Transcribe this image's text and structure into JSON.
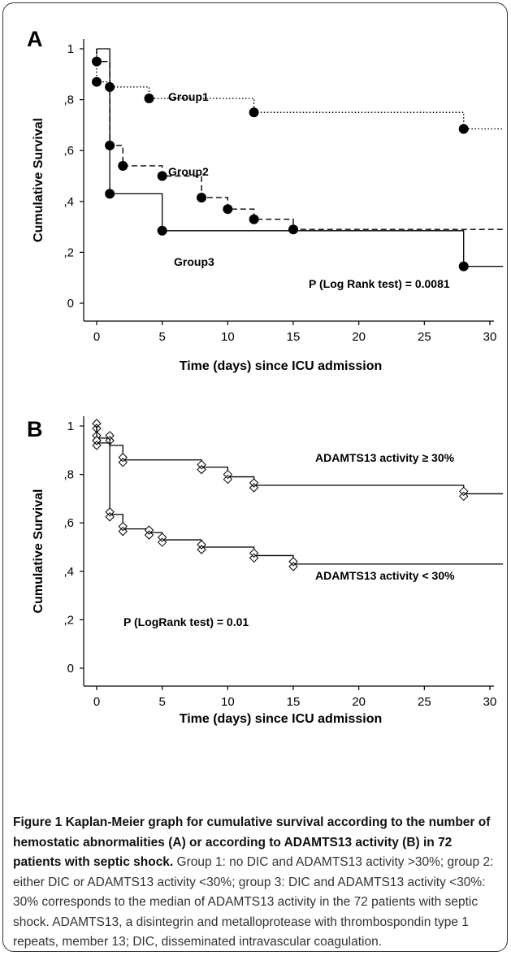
{
  "chart_data": [
    {
      "panel": "A",
      "type": "line",
      "step": true,
      "xlabel": "Time (days) since ICU admission",
      "ylabel": "Cumulative Survival",
      "xlim": [
        -1,
        31
      ],
      "ylim": [
        -0.05,
        1.05
      ],
      "xticks": [
        0,
        5,
        10,
        15,
        20,
        25,
        30
      ],
      "xtick_labels": [
        "0",
        "5",
        "10",
        "15",
        "20",
        "25",
        "30"
      ],
      "yticks": [
        0,
        0.2,
        0.4,
        0.6,
        0.8,
        1
      ],
      "ytick_labels": [
        "0",
        ",2",
        ",4",
        ",6",
        ",8",
        "1"
      ],
      "grid": false,
      "series": [
        {
          "name": "Group1",
          "line_style": "dotted",
          "x": [
            0,
            0,
            1,
            4,
            12,
            28,
            31
          ],
          "y": [
            1,
            0.87,
            0.85,
            0.805,
            0.75,
            0.685,
            0.685
          ],
          "events": [
            [
              0,
              0.87
            ],
            [
              1,
              0.85
            ],
            [
              4,
              0.805
            ],
            [
              12,
              0.75
            ],
            [
              28,
              0.685
            ]
          ]
        },
        {
          "name": "Group2",
          "line_style": "dashed",
          "x": [
            0,
            0,
            1,
            2,
            5,
            8,
            10,
            12,
            15,
            31
          ],
          "y": [
            1,
            0.95,
            0.62,
            0.54,
            0.5,
            0.415,
            0.37,
            0.33,
            0.29,
            0.29
          ],
          "events": [
            [
              0,
              0.95
            ],
            [
              1,
              0.62
            ],
            [
              2,
              0.54
            ],
            [
              5,
              0.5
            ],
            [
              8,
              0.415
            ],
            [
              10,
              0.37
            ],
            [
              12,
              0.33
            ],
            [
              15,
              0.29
            ]
          ]
        },
        {
          "name": "Group3",
          "line_style": "solid",
          "x": [
            0,
            1,
            5,
            28,
            31
          ],
          "y": [
            1,
            0.43,
            0.285,
            0.145,
            0.145
          ],
          "events": [
            [
              1,
              0.43
            ],
            [
              5,
              0.285
            ],
            [
              28,
              0.145
            ]
          ]
        }
      ],
      "annotations": [
        "P (Log Rank test) = 0.0081"
      ]
    },
    {
      "panel": "B",
      "type": "line",
      "step": true,
      "xlabel": "Time (days) since ICU admission",
      "ylabel": "Cumulative Survival",
      "xlim": [
        -1,
        31
      ],
      "ylim": [
        -0.05,
        1.05
      ],
      "xticks": [
        0,
        5,
        10,
        15,
        20,
        25,
        30
      ],
      "xtick_labels": [
        "0",
        "5",
        "10",
        "15",
        "20",
        "25",
        "30"
      ],
      "yticks": [
        0,
        0.2,
        0.4,
        0.6,
        0.8,
        1
      ],
      "ytick_labels": [
        "0",
        ",2",
        ",4",
        ",6",
        ",8",
        "1"
      ],
      "grid": false,
      "series": [
        {
          "name": "ADAMTS13 activity ≥ 30%",
          "x": [
            0,
            0,
            1,
            1,
            2,
            8,
            10,
            12,
            28,
            31
          ],
          "y": [
            1,
            0.95,
            0.95,
            0.92,
            0.86,
            0.83,
            0.79,
            0.755,
            0.72,
            0.72
          ],
          "censored": [
            [
              0,
              1
            ],
            [
              0,
              0.95
            ],
            [
              1,
              0.95
            ],
            [
              2,
              0.86
            ],
            [
              8,
              0.83
            ],
            [
              10,
              0.79
            ],
            [
              12,
              0.755
            ],
            [
              28,
              0.72
            ]
          ]
        },
        {
          "name": "ADAMTS13 activity < 30%",
          "x": [
            0,
            0,
            1,
            1,
            2,
            4,
            5,
            8,
            12,
            15,
            31
          ],
          "y": [
            1,
            0.93,
            0.93,
            0.635,
            0.575,
            0.56,
            0.53,
            0.5,
            0.465,
            0.43,
            0.43
          ],
          "censored": [
            [
              0,
              0.93
            ],
            [
              1,
              0.635
            ],
            [
              2,
              0.575
            ],
            [
              4,
              0.56
            ],
            [
              5,
              0.53
            ],
            [
              8,
              0.5
            ],
            [
              12,
              0.465
            ],
            [
              15,
              0.43
            ]
          ]
        }
      ],
      "annotations": [
        "P (LogRank test) = 0.01"
      ]
    }
  ],
  "caption": {
    "title": "Figure 1 Kaplan-Meier graph for cumulative survival according to the number of hemostatic abnormalities (A) or according to ADAMTS13 activity (B) in 72 patients with septic shock.",
    "body": " Group 1: no DIC and ADAMTS13 activity >30%; group 2: either DIC or ADAMTS13 activity <30%; group 3: DIC and ADAMTS13 activity <30%: 30% corresponds to the median of ADAMTS13 activity in the 72 patients with septic shock. ADAMTS13, a disintegrin and metalloprotease with thrombospondin type 1 repeats, member 13; DIC, disseminated intravascular coagulation."
  }
}
